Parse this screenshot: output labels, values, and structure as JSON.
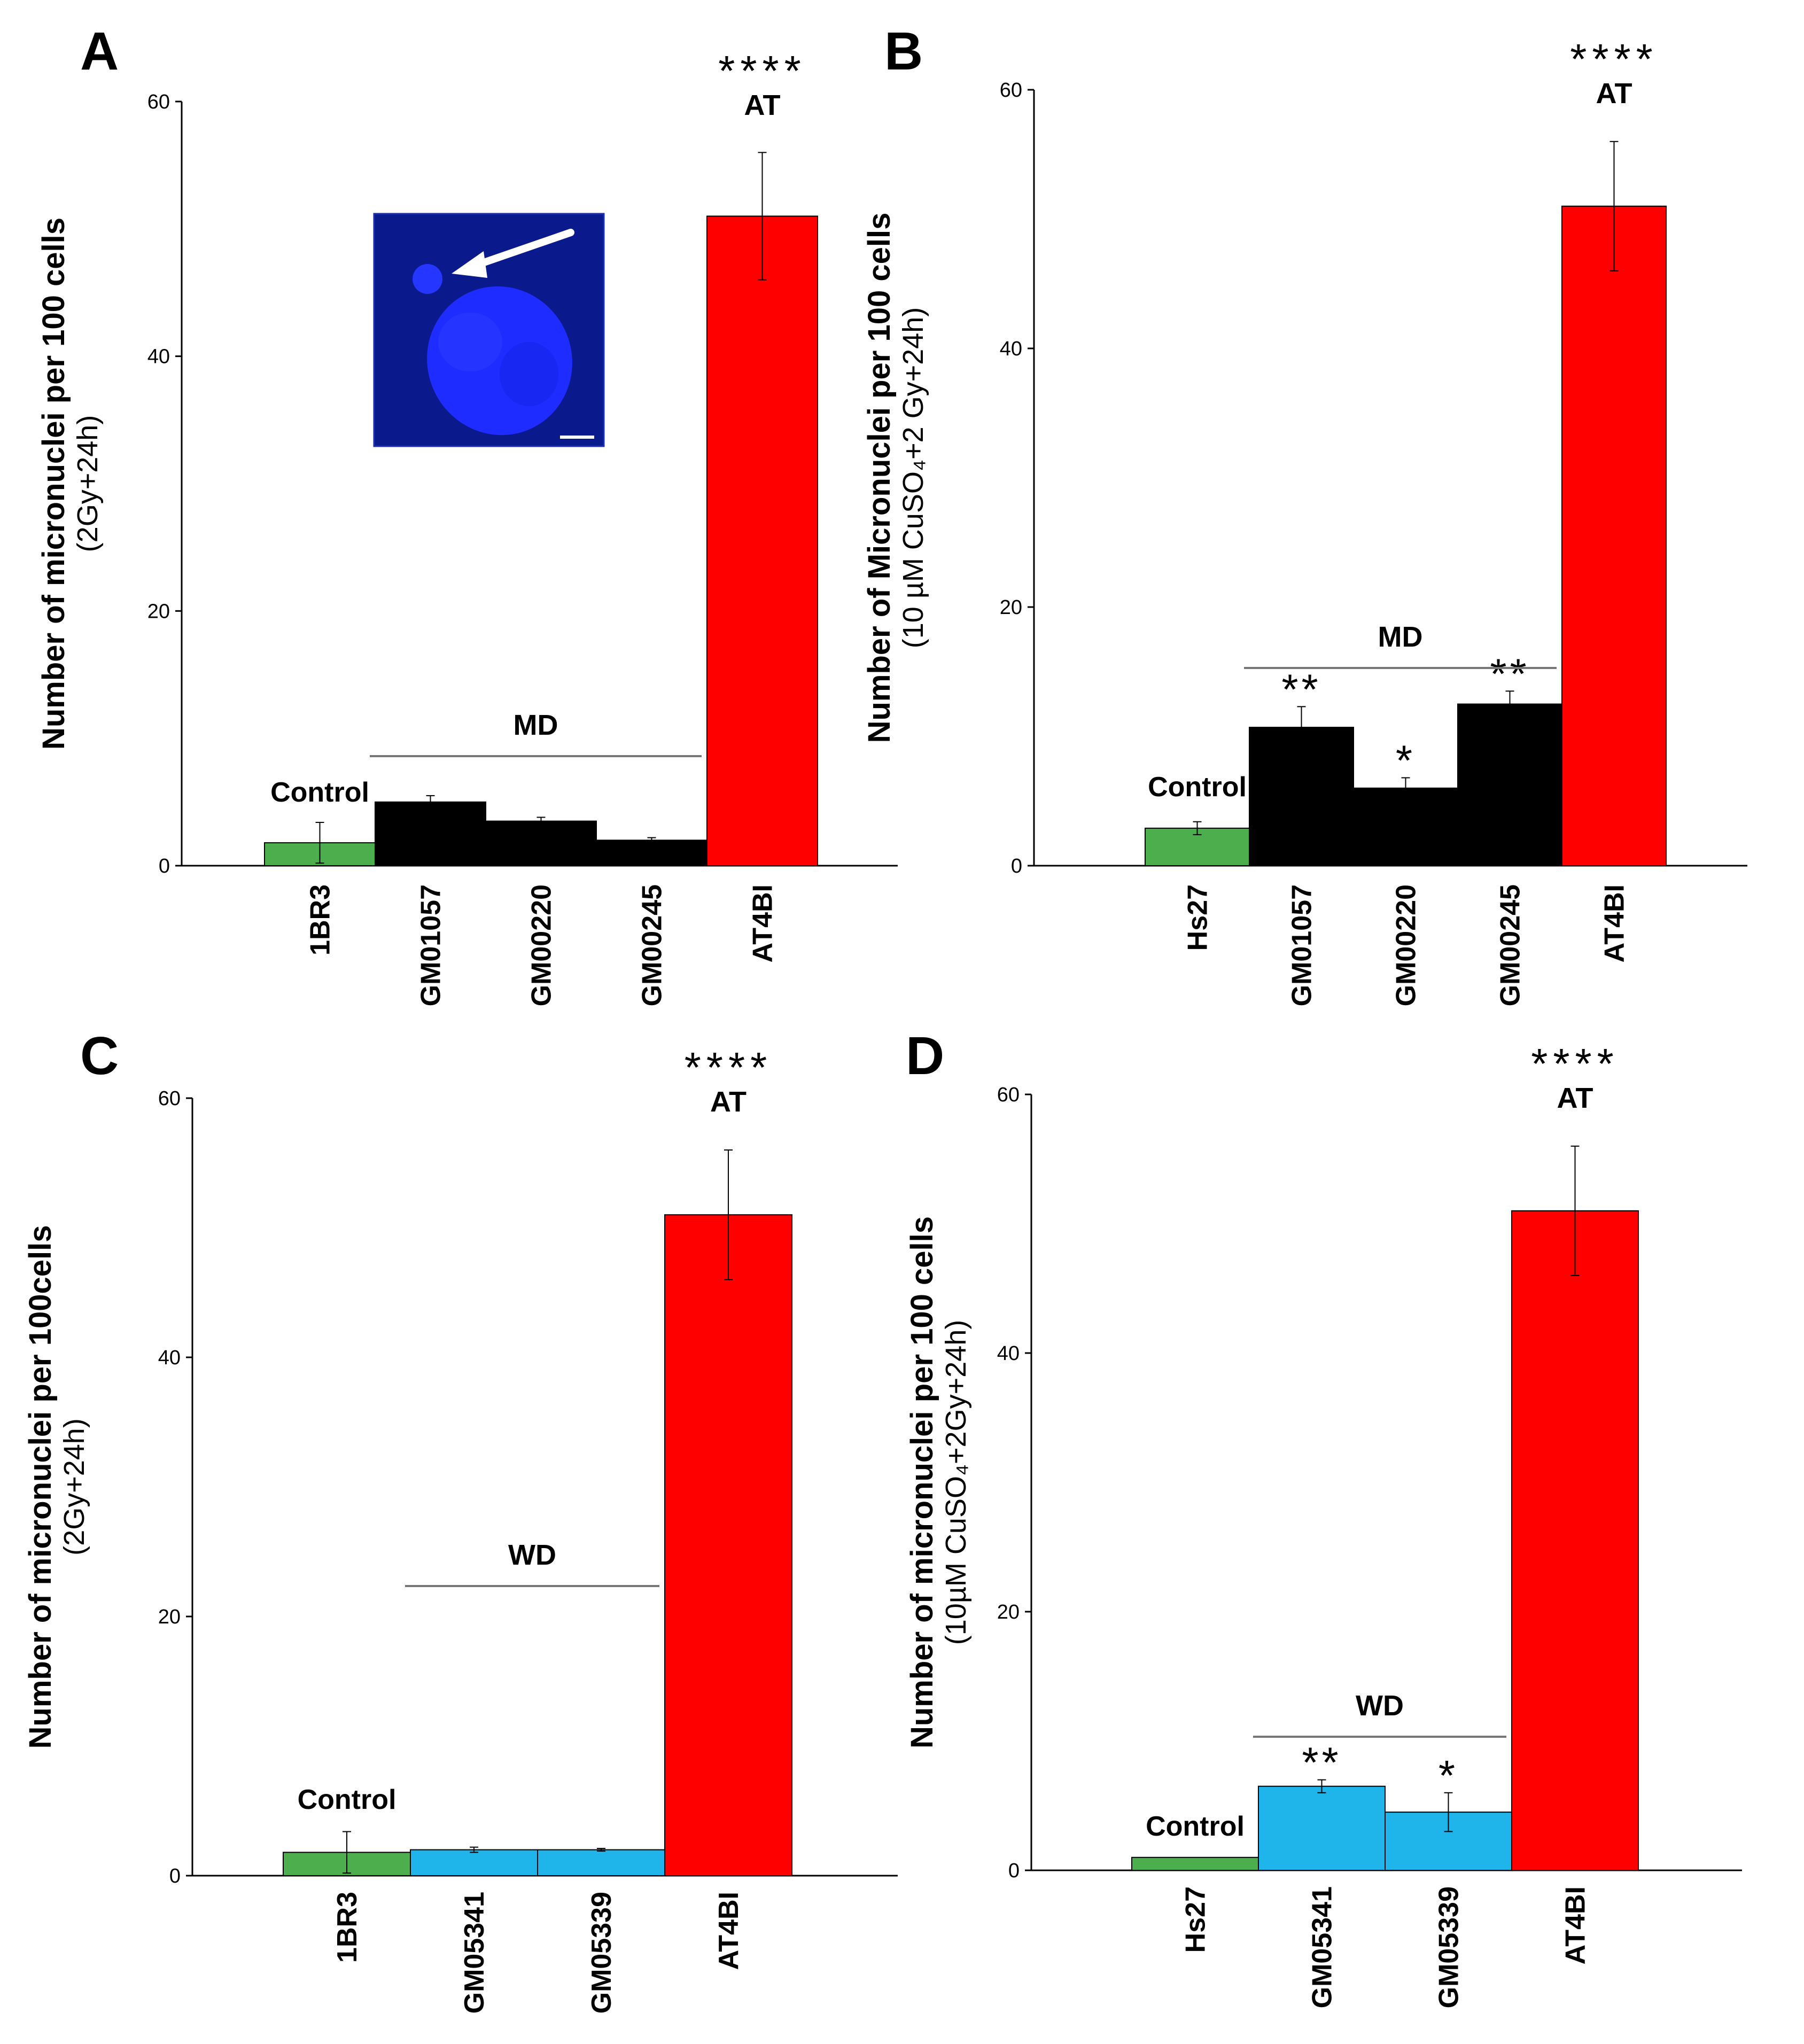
{
  "chart_data": [
    {
      "panel": "A",
      "type": "bar",
      "ylabel_line1": "Number of micronuclei per 100 cells",
      "ylabel_line2": "(2Gy+24h)",
      "ylim": [
        0,
        60
      ],
      "yticks": [
        "0",
        "20",
        "40",
        "60"
      ],
      "categories": [
        "1BR3",
        "GM01057",
        "GM00220",
        "GM00245",
        "AT4BI"
      ],
      "values": [
        1.8,
        5.0,
        3.5,
        2.0,
        51.0
      ],
      "errors": [
        1.6,
        0.5,
        0.3,
        0.2,
        5.0
      ],
      "colors": [
        "#4cae4c",
        "#000000",
        "#000000",
        "#000000",
        "#ff0000"
      ],
      "control_label": "Control",
      "group_label": "MD",
      "group_range": [
        1,
        3
      ],
      "at_label": "AT",
      "significance": [
        "",
        "",
        "",
        "",
        "****"
      ],
      "inset": true
    },
    {
      "panel": "B",
      "type": "bar",
      "ylabel_line1": "Number of Micronuclei per 100 cells",
      "ylabel_line2": "(10 µM CuSO₄+2 Gy+24h)",
      "ylim": [
        0,
        60
      ],
      "yticks": [
        "0",
        "20",
        "40",
        "60"
      ],
      "categories": [
        "Hs27",
        "GM01057",
        "GM00220",
        "GM00245",
        "AT4BI"
      ],
      "values": [
        2.9,
        10.7,
        6.0,
        12.5,
        51.0
      ],
      "errors": [
        0.5,
        1.6,
        0.8,
        1.0,
        5.0
      ],
      "colors": [
        "#4cae4c",
        "#000000",
        "#000000",
        "#000000",
        "#ff0000"
      ],
      "control_label": "Control",
      "group_label": "MD",
      "group_range": [
        1,
        3
      ],
      "at_label": "AT",
      "significance": [
        "",
        "**",
        "*",
        "**",
        "****"
      ],
      "inset": false
    },
    {
      "panel": "C",
      "type": "bar",
      "ylabel_line1": "Number of micronuclei per 100cells",
      "ylabel_line2": "(2Gy+24h)",
      "ylim": [
        0,
        60
      ],
      "yticks": [
        "0",
        "20",
        "40",
        "60"
      ],
      "categories": [
        "1BR3",
        "GM05341",
        "GM05339",
        "AT4BI"
      ],
      "values": [
        1.8,
        2.0,
        2.0,
        51.0
      ],
      "errors": [
        1.6,
        0.2,
        0.1,
        5.0
      ],
      "colors": [
        "#4cae4c",
        "#1fb4ea",
        "#1fb4ea",
        "#ff0000"
      ],
      "control_label": "Control",
      "group_label": "WD",
      "group_range": [
        1,
        2
      ],
      "at_label": "AT",
      "significance": [
        "",
        "",
        "",
        "****"
      ],
      "inset": false
    },
    {
      "panel": "D",
      "type": "bar",
      "ylabel_line1": "Number of micronuclei per 100 cells",
      "ylabel_line2": "(10µM CuSO₄+2Gy+24h)",
      "ylim": [
        0,
        60
      ],
      "yticks": [
        "0",
        "20",
        "40",
        "60"
      ],
      "categories": [
        "Hs27",
        "GM05341",
        "GM05339",
        "AT4BI"
      ],
      "values": [
        1.0,
        6.5,
        4.5,
        51.0
      ],
      "errors": [
        0.0,
        0.5,
        1.5,
        5.0
      ],
      "colors": [
        "#4cae4c",
        "#1fb4ea",
        "#1fb4ea",
        "#ff0000"
      ],
      "control_label": "Control",
      "group_label": "WD",
      "group_range": [
        1,
        2
      ],
      "at_label": "AT",
      "significance": [
        "",
        "**",
        "*",
        "****"
      ],
      "inset": false
    }
  ]
}
